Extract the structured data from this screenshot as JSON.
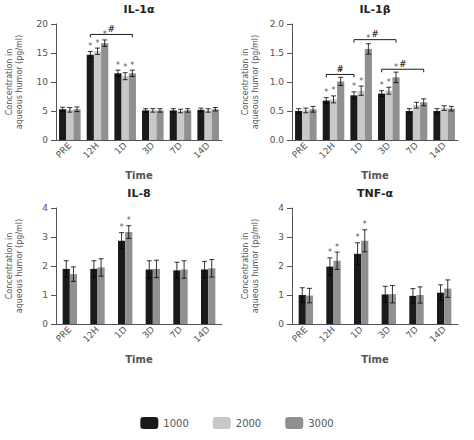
{
  "chart_data": [
    {
      "type": "bar",
      "title": "IL-1α",
      "ylabel": "Concentration in\naqueous humor (pg/ml)",
      "xlabel": "Time",
      "categories": [
        "PRE",
        "12H",
        "1D",
        "3D",
        "7D",
        "14D"
      ],
      "series": [
        {
          "name": "1000",
          "color": "#1a1a1a",
          "values": [
            5.3,
            14.7,
            11.5,
            5.1,
            5.1,
            5.2
          ],
          "errors": [
            0.35,
            0.55,
            0.55,
            0.3,
            0.3,
            0.3
          ],
          "stars": [
            null,
            "*",
            "*",
            null,
            null,
            null
          ]
        },
        {
          "name": "2000",
          "color": "#c8c8c8",
          "values": [
            5.2,
            15.3,
            11.0,
            5.1,
            5.0,
            5.1
          ],
          "errors": [
            0.4,
            0.55,
            0.6,
            0.3,
            0.3,
            0.3
          ],
          "stars": [
            null,
            "*",
            "*",
            null,
            null,
            null
          ]
        },
        {
          "name": "3000",
          "color": "#909090",
          "values": [
            5.3,
            16.7,
            11.5,
            5.1,
            5.1,
            5.3
          ],
          "errors": [
            0.4,
            0.55,
            0.55,
            0.3,
            0.3,
            0.3
          ],
          "stars": [
            null,
            "*",
            "*",
            null,
            null,
            null
          ]
        }
      ],
      "brackets": [
        {
          "label": "#",
          "from_category": "12H",
          "from_series": "1000",
          "to_category": "1D",
          "to_series": "3000",
          "y": 18.2
        }
      ],
      "ylim": [
        0,
        20
      ],
      "yticks": [
        0,
        5,
        10,
        15,
        20
      ],
      "grid": false,
      "legend": "bottom"
    },
    {
      "type": "bar",
      "title": "IL-1β",
      "ylabel": "Concentration in\naqueous humor (pg/ml)",
      "xlabel": "Time",
      "categories": [
        "PRE",
        "12H",
        "1D",
        "3D",
        "7D",
        "14D"
      ],
      "series": [
        {
          "name": "1000",
          "color": "#1a1a1a",
          "values": [
            0.5,
            0.68,
            0.77,
            0.8,
            0.5,
            0.5
          ],
          "errors": [
            0.04,
            0.05,
            0.06,
            0.05,
            0.04,
            0.04
          ],
          "stars": [
            null,
            "*",
            "*",
            "*",
            null,
            null
          ]
        },
        {
          "name": "2000",
          "color": "#c8c8c8",
          "values": [
            0.51,
            0.7,
            0.85,
            0.85,
            0.6,
            0.55
          ],
          "errors": [
            0.04,
            0.06,
            0.08,
            0.06,
            0.05,
            0.04
          ],
          "stars": [
            null,
            "*",
            "*",
            "*",
            null,
            null
          ]
        },
        {
          "name": "3000",
          "color": "#909090",
          "values": [
            0.53,
            1.01,
            1.57,
            1.08,
            0.65,
            0.54
          ],
          "errors": [
            0.05,
            0.07,
            0.09,
            0.09,
            0.06,
            0.04
          ],
          "stars": [
            null,
            "*",
            "*",
            "*",
            null,
            null
          ]
        }
      ],
      "brackets": [
        {
          "label": "#",
          "from_category": "12H",
          "from_series": "1000",
          "to_category": "1D",
          "to_series": "1000",
          "y": 1.13
        },
        {
          "label": "#",
          "from_category": "1D",
          "from_series": "1000",
          "to_category": "3D",
          "to_series": "3000",
          "y": 1.73
        },
        {
          "label": "#",
          "from_category": "3D",
          "from_series": "1000",
          "to_category": "7D",
          "to_series": "3000",
          "y": 1.22
        }
      ],
      "ylim": [
        0,
        2.0
      ],
      "yticks": [
        {
          "value": 0,
          "label": "0.0"
        },
        0.5,
        {
          "value": 1,
          "label": "1.0"
        },
        1.5,
        {
          "value": 2,
          "label": "2.0"
        }
      ],
      "grid": false,
      "legend": "bottom"
    },
    {
      "type": "bar",
      "title": "IL-8",
      "ylabel": "Concentration in\naqueous humor (pg/ml)",
      "xlabel": "Time",
      "categories": [
        "PRE",
        "12H",
        "1D",
        "3D",
        "7D",
        "14D"
      ],
      "series": [
        {
          "name": "1000",
          "color": "#1a1a1a",
          "values": [
            1.9,
            1.9,
            2.87,
            1.88,
            1.85,
            1.88
          ],
          "errors": [
            0.28,
            0.28,
            0.28,
            0.3,
            0.28,
            0.28
          ],
          "stars": [
            null,
            null,
            "*",
            null,
            null,
            null
          ]
        },
        {
          "name": "3000",
          "color": "#909090",
          "values": [
            1.72,
            1.95,
            3.17,
            1.9,
            1.88,
            1.92
          ],
          "errors": [
            0.25,
            0.3,
            0.22,
            0.3,
            0.3,
            0.3
          ],
          "stars": [
            null,
            null,
            "*",
            null,
            null,
            null
          ]
        }
      ],
      "brackets": [],
      "ylim": [
        0,
        4
      ],
      "yticks": [
        0,
        1,
        2,
        3,
        4
      ],
      "grid": false,
      "legend": "bottom"
    },
    {
      "type": "bar",
      "title": "TNF-α",
      "ylabel": "Concentration in\naqueous humor (pg/ml)",
      "xlabel": "Time",
      "categories": [
        "PRE",
        "12H",
        "1D",
        "3D",
        "7D",
        "14D"
      ],
      "series": [
        {
          "name": "1000",
          "color": "#1a1a1a",
          "values": [
            1.0,
            1.98,
            2.42,
            1.02,
            0.97,
            1.08
          ],
          "errors": [
            0.25,
            0.3,
            0.38,
            0.28,
            0.25,
            0.27
          ],
          "stars": [
            null,
            "*",
            "*",
            null,
            null,
            null
          ]
        },
        {
          "name": "3000",
          "color": "#909090",
          "values": [
            0.98,
            2.18,
            2.87,
            1.03,
            1.0,
            1.22
          ],
          "errors": [
            0.25,
            0.3,
            0.38,
            0.3,
            0.28,
            0.3
          ],
          "stars": [
            null,
            "*",
            "*",
            null,
            null,
            null
          ]
        }
      ],
      "brackets": [],
      "ylim": [
        0,
        4
      ],
      "yticks": [
        0,
        1,
        2,
        3,
        4
      ],
      "grid": false,
      "legend": "bottom"
    }
  ]
}
